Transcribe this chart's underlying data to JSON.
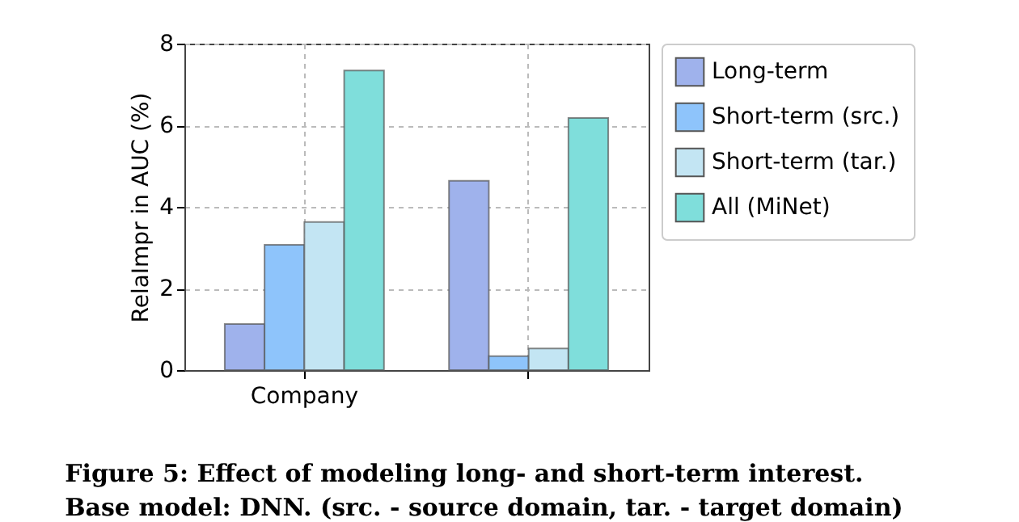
{
  "chart_data": {
    "type": "bar",
    "ylabel": "RelaImpr in AUC (%)",
    "categories": [
      "Company",
      null
    ],
    "series": [
      {
        "name": "Long-term",
        "color": "#9fb2ec",
        "values": [
          1.13,
          4.64
        ]
      },
      {
        "name": "Short-term (src.)",
        "color": "#8ec4fb",
        "values": [
          3.07,
          0.34
        ]
      },
      {
        "name": "Short-term (tar.)",
        "color": "#c3e5f3",
        "values": [
          3.63,
          0.53
        ]
      },
      {
        "name": "All (MiNet)",
        "color": "#7fdedb",
        "values": [
          7.34,
          6.18
        ]
      }
    ],
    "ylim": [
      0,
      8
    ],
    "yticks": [
      0,
      2,
      4,
      6,
      8
    ],
    "grid": true,
    "legend": "right",
    "annotations": [
      "Figure 5: Effect of modeling long- and short-term interest.",
      "Base model: DNN. (src. - source domain, tar. - target domain)"
    ]
  }
}
